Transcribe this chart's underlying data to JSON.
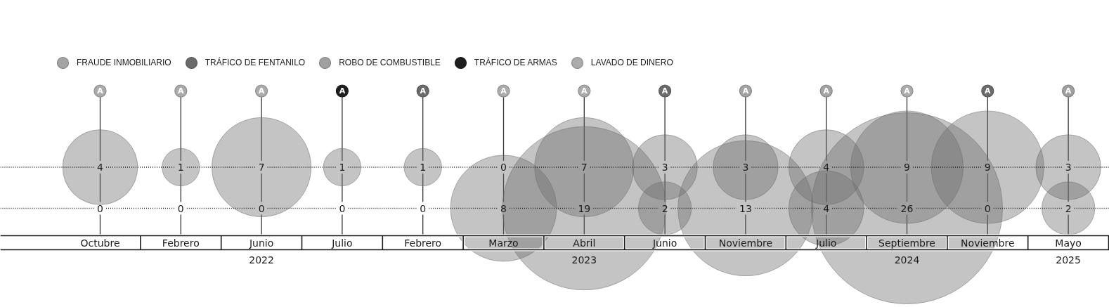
{
  "chart_data": {
    "type": "other",
    "legend": "top left",
    "data_labels": true,
    "categories": [
      "Octubre",
      "Febrero",
      "Junio",
      "Julio",
      "Febrero",
      "Marzo",
      "Abril",
      "Junio",
      "Noviembre",
      "Julio",
      "Septiembre",
      "Noviembre",
      "Mayo"
    ],
    "series": [
      {
        "name": "FRAUDE INMOBILIARIO",
        "type": "lollipop",
        "color": "#a4a4a4",
        "values": [
          null,
          null,
          null,
          null,
          null,
          null,
          null,
          null,
          null,
          null,
          null,
          null,
          null
        ],
        "value_labels": [
          null,
          null,
          null,
          null,
          null,
          null,
          null,
          null,
          "A",
          "A",
          null,
          null,
          null
        ]
      },
      {
        "name": "TRÁFICO DE FENTANILO",
        "type": "lollipop",
        "color": "#6b6b6b",
        "values": [
          null,
          null,
          null,
          null,
          null,
          null,
          null,
          null,
          null,
          null,
          null,
          null,
          null
        ],
        "value_labels": [
          null,
          null,
          null,
          null,
          "A",
          null,
          null,
          "A",
          null,
          null,
          null,
          "A",
          null
        ]
      },
      {
        "name": "ROBO DE COMBUSTIBLE",
        "type": "lollipop",
        "color": "#a0a0a0",
        "values": [
          null,
          null,
          null,
          null,
          null,
          null,
          null,
          null,
          null,
          null,
          null,
          null,
          null
        ],
        "value_labels": [
          null,
          null,
          null,
          null,
          null,
          null,
          null,
          null,
          null,
          null,
          null,
          null,
          "A"
        ]
      },
      {
        "name": "TRÁFICO DE ARMAS",
        "type": "lollipop",
        "color": "#1e1e1e",
        "values": [
          null,
          null,
          null,
          null,
          null,
          null,
          null,
          null,
          null,
          null,
          null,
          null,
          null
        ],
        "value_labels": [
          null,
          null,
          null,
          "A",
          null,
          null,
          null,
          null,
          null,
          null,
          null,
          null,
          null
        ]
      },
      {
        "name": "LAVADO DE DINERO",
        "type": "lollipop",
        "color": "#acacac",
        "values": [
          null,
          null,
          null,
          null,
          null,
          null,
          null,
          null,
          null,
          null,
          null,
          null,
          null
        ],
        "value_labels": [
          "A",
          "A",
          "A",
          null,
          null,
          "A",
          "A",
          null,
          null,
          null,
          "A",
          null,
          null
        ]
      },
      {
        "color": "#c4c4c4",
        "values": [
          4,
          1,
          7,
          1,
          1,
          0,
          7,
          3,
          3,
          4,
          9,
          9,
          3
        ]
      },
      {
        "color": "#c4c4c4",
        "values": [
          0,
          0,
          0,
          0,
          0,
          8,
          19,
          2,
          13,
          4,
          26,
          0,
          2
        ]
      }
    ],
    "annotations": [
      {
        "text": "2022",
        "x": "Junio"
      },
      {
        "text": "2023",
        "x": "Abril"
      },
      {
        "text": "2024",
        "x": "Septiembre"
      },
      {
        "text": "2025",
        "x": "Mayo"
      }
    ]
  }
}
